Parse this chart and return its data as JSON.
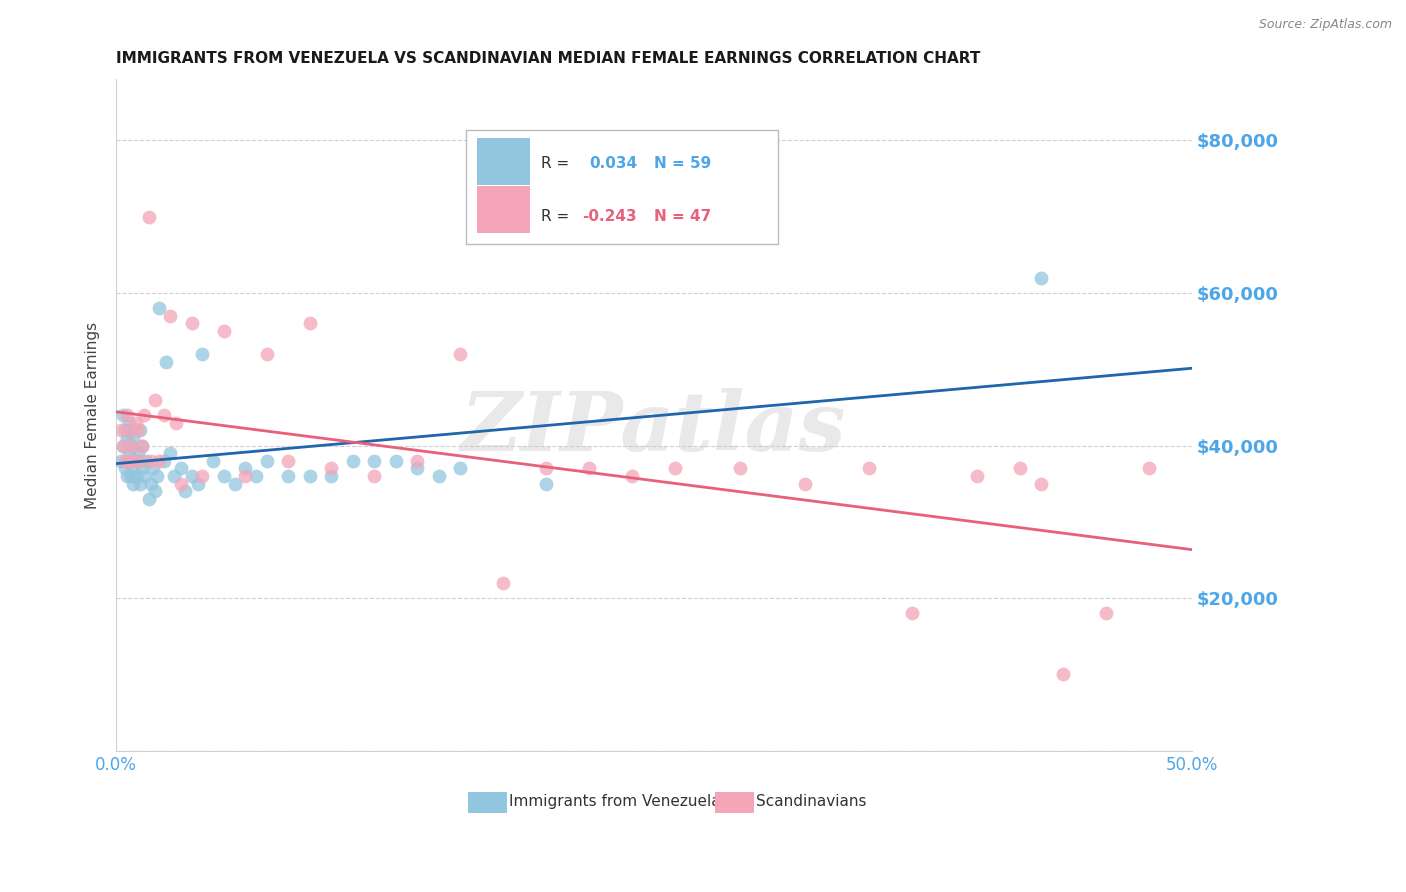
{
  "title": "IMMIGRANTS FROM VENEZUELA VS SCANDINAVIAN MEDIAN FEMALE EARNINGS CORRELATION CHART",
  "source": "Source: ZipAtlas.com",
  "ylabel": "Median Female Earnings",
  "y_ticks": [
    0,
    20000,
    40000,
    60000,
    80000
  ],
  "y_tick_labels": [
    "",
    "$20,000",
    "$40,000",
    "$60,000",
    "$80,000"
  ],
  "xlim": [
    0.0,
    0.5
  ],
  "ylim": [
    0,
    88000
  ],
  "color_blue": "#92c5de",
  "color_pink": "#f4a5b8",
  "color_blue_line": "#2166ac",
  "color_pink_line": "#e8607a",
  "color_axis_labels": "#4da6e8",
  "color_grid": "#d0d0d0",
  "watermark": "ZIPatlas",
  "venezuela_x": [
    0.002,
    0.003,
    0.003,
    0.004,
    0.004,
    0.005,
    0.005,
    0.005,
    0.006,
    0.006,
    0.006,
    0.007,
    0.007,
    0.007,
    0.008,
    0.008,
    0.008,
    0.009,
    0.009,
    0.01,
    0.01,
    0.011,
    0.011,
    0.012,
    0.012,
    0.013,
    0.014,
    0.015,
    0.016,
    0.017,
    0.018,
    0.019,
    0.02,
    0.022,
    0.023,
    0.025,
    0.027,
    0.03,
    0.032,
    0.035,
    0.038,
    0.04,
    0.045,
    0.05,
    0.055,
    0.06,
    0.065,
    0.07,
    0.08,
    0.09,
    0.1,
    0.11,
    0.12,
    0.13,
    0.14,
    0.15,
    0.16,
    0.2,
    0.43
  ],
  "venezuela_y": [
    38000,
    40000,
    44000,
    42000,
    37000,
    41000,
    38000,
    36000,
    43000,
    39000,
    42000,
    38000,
    36000,
    40000,
    35000,
    37000,
    41000,
    38000,
    36000,
    39000,
    38000,
    35000,
    42000,
    37000,
    40000,
    36000,
    38000,
    33000,
    35000,
    37000,
    34000,
    36000,
    58000,
    38000,
    51000,
    39000,
    36000,
    37000,
    34000,
    36000,
    35000,
    52000,
    38000,
    36000,
    35000,
    37000,
    36000,
    38000,
    36000,
    36000,
    36000,
    38000,
    38000,
    38000,
    37000,
    36000,
    37000,
    35000,
    62000
  ],
  "scandinavian_x": [
    0.002,
    0.003,
    0.004,
    0.005,
    0.006,
    0.006,
    0.007,
    0.008,
    0.009,
    0.01,
    0.011,
    0.012,
    0.013,
    0.015,
    0.016,
    0.018,
    0.02,
    0.022,
    0.025,
    0.028,
    0.03,
    0.035,
    0.04,
    0.05,
    0.06,
    0.07,
    0.08,
    0.09,
    0.1,
    0.12,
    0.14,
    0.16,
    0.18,
    0.2,
    0.22,
    0.24,
    0.26,
    0.29,
    0.32,
    0.35,
    0.37,
    0.4,
    0.42,
    0.43,
    0.44,
    0.46,
    0.48
  ],
  "scandinavian_y": [
    42000,
    40000,
    38000,
    44000,
    38000,
    42000,
    40000,
    38000,
    43000,
    42000,
    38000,
    40000,
    44000,
    70000,
    38000,
    46000,
    38000,
    44000,
    57000,
    43000,
    35000,
    56000,
    36000,
    55000,
    36000,
    52000,
    38000,
    56000,
    37000,
    36000,
    38000,
    52000,
    22000,
    37000,
    37000,
    36000,
    37000,
    37000,
    35000,
    37000,
    18000,
    36000,
    37000,
    35000,
    10000,
    18000,
    37000
  ],
  "legend_R1_pre": "R =  ",
  "legend_R1_val": "0.034",
  "legend_N1": "N = 59",
  "legend_R2_pre": "R = ",
  "legend_R2_val": "-0.243",
  "legend_N2": "N = 47",
  "bottom_label1": "Immigrants from Venezuela",
  "bottom_label2": "Scandinavians"
}
